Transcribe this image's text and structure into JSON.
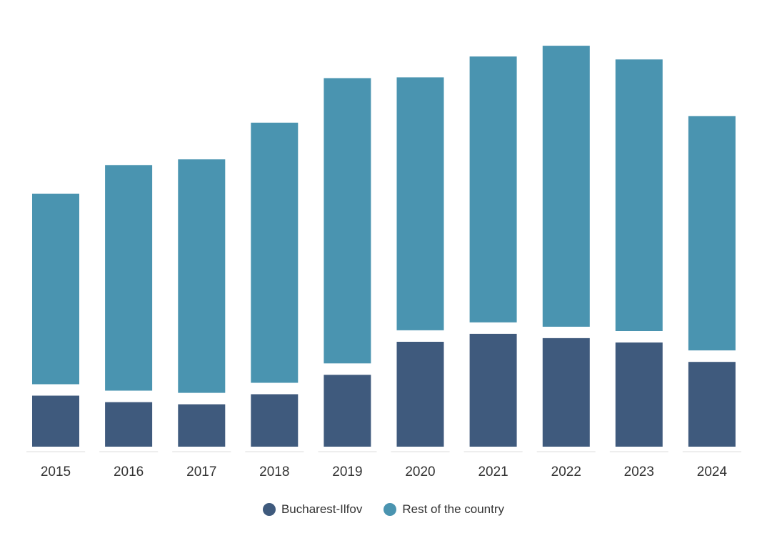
{
  "chart_data": {
    "type": "bar",
    "stacked": true,
    "categories": [
      "2015",
      "2016",
      "2017",
      "2018",
      "2019",
      "2020",
      "2021",
      "2022",
      "2023",
      "2024"
    ],
    "series": [
      {
        "name": "Bucharest-Ilfov",
        "color": "#3f5a7d",
        "values": [
          71,
          62,
          59,
          73,
          100,
          146,
          157,
          151,
          145,
          118
        ]
      },
      {
        "name": "Rest of the country",
        "color": "#4a94b0",
        "values": [
          265,
          314,
          325,
          362,
          397,
          352,
          370,
          391,
          378,
          326
        ]
      }
    ],
    "ylim": [
      0,
      560
    ],
    "grid": false,
    "legend_position": "bottom"
  },
  "legend": {
    "items": [
      {
        "label": "Bucharest-Ilfov",
        "color": "#3f5a7d"
      },
      {
        "label": "Rest of the country",
        "color": "#4a94b0"
      }
    ]
  }
}
